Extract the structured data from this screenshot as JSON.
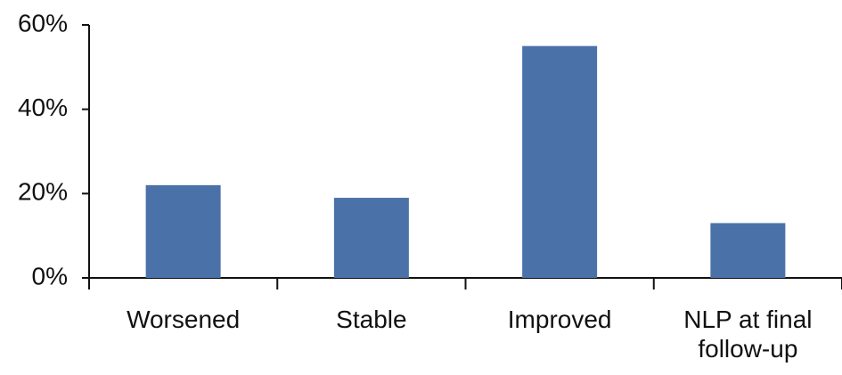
{
  "chart_data": {
    "type": "bar",
    "categories": [
      "Worsened",
      "Stable",
      "Improved",
      "NLP at final follow-up"
    ],
    "values": [
      22,
      19,
      55,
      13
    ],
    "color": "#4a72a8",
    "ylim": [
      0,
      60
    ],
    "yticks": [
      {
        "value": 0,
        "label": "0%"
      },
      {
        "value": 20,
        "label": "20%"
      },
      {
        "value": 40,
        "label": "40%"
      },
      {
        "value": 60,
        "label": "60%"
      }
    ],
    "grid": false
  }
}
